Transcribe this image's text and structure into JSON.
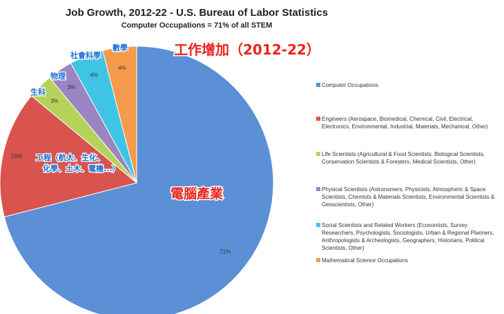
{
  "chart_data": {
    "type": "pie",
    "title": "Job Growth, 2012-22 - U.S. Bureau of Labor Statistics",
    "subtitle": "Computer Occupations = 71% of all STEM",
    "start_angle_deg": 0,
    "direction": "clockwise",
    "legend_position": "right",
    "slices": [
      {
        "label": "Computer Occupations",
        "value": 71,
        "value_label": "71%",
        "color": "#5b8fd6"
      },
      {
        "label": "Engineers (Aerospace, Biomedical, Chemical, Civil, Electrical, Electronics, Environmental, Industrial, Materials, Mechanical, Other)",
        "value": 15,
        "value_label": "15%",
        "color": "#d9534f"
      },
      {
        "label": "Life Scientists (Agricultural & Food Scientists, Biological Scientists, Conservation Scientists & Foresters, Medical Scientists, Other)",
        "value": 3,
        "value_label": "3%",
        "color": "#b5d35a"
      },
      {
        "label": "Physical Scientists (Astronomers, Physicists, Atmospheric & Space Scientists, Chemists & Materials Scientists, Environmental Scientists & Geoscientists, Other)",
        "value": 3,
        "value_label": "3%",
        "color": "#9b84c2"
      },
      {
        "label": "Social Scientists and Related Workers (Economists, Survey Researchers, Psychologists, Sociologists, Urban & Regional Planners, Anthropologists & Archeologists, Geographers, Historians, Political Scientists, Other)",
        "value": 4,
        "value_label": "4%",
        "color": "#3fc4e6"
      },
      {
        "label": "Mathematical Science Occupations",
        "value": 4,
        "value_label": "4%",
        "color": "#f59b4c"
      }
    ],
    "annotations": [
      {
        "text": "工作增加（2012-22）",
        "color": "#e8251c"
      },
      {
        "text": "電腦產業",
        "color": "#e8251c"
      },
      {
        "text": "工程（航太、生化、",
        "color": "#1d6fd1"
      },
      {
        "text": "化學、土木、電機...）",
        "color": "#1d6fd1"
      },
      {
        "text": "生科",
        "color": "#1d6fd1"
      },
      {
        "text": "物理",
        "color": "#1d6fd1"
      },
      {
        "text": "社會科學",
        "color": "#1d6fd1"
      },
      {
        "text": "數學",
        "color": "#1d6fd1"
      }
    ]
  }
}
